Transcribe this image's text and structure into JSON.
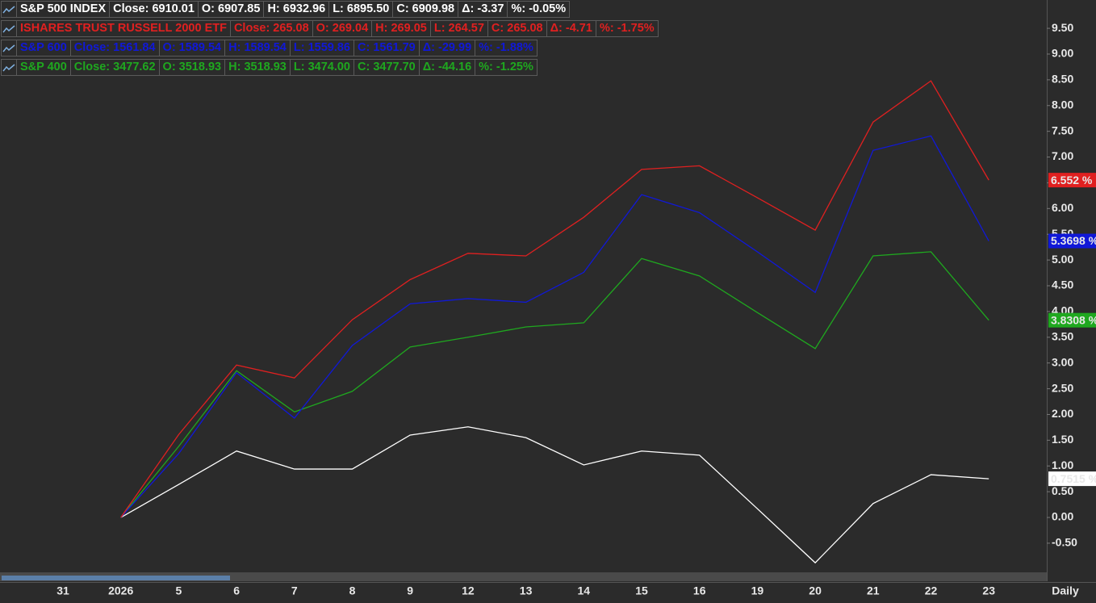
{
  "chart_data": {
    "type": "line",
    "categories": [
      "31",
      "2026",
      "5",
      "6",
      "7",
      "8",
      "9",
      "12",
      "13",
      "14",
      "15",
      "16",
      "19",
      "20",
      "21",
      "22",
      "23"
    ],
    "period": "Daily",
    "ylim": [
      -1.05,
      10.05
    ],
    "yticks": [
      {
        "value": -0.5,
        "label": "-0.50"
      },
      {
        "value": 0,
        "label": "0.00"
      },
      {
        "value": 0.5,
        "label": "0.50"
      },
      {
        "value": 1,
        "label": "1.00"
      },
      {
        "value": 1.5,
        "label": "1.50"
      },
      {
        "value": 2,
        "label": "2.00"
      },
      {
        "value": 2.5,
        "label": "2.50"
      },
      {
        "value": 3,
        "label": "3.00"
      },
      {
        "value": 3.5,
        "label": "3.50"
      },
      {
        "value": 4,
        "label": "4.00"
      },
      {
        "value": 4.5,
        "label": "4.50"
      },
      {
        "value": 5,
        "label": "5.00"
      },
      {
        "value": 5.5,
        "label": "5.50"
      },
      {
        "value": 6,
        "label": "6.00"
      },
      {
        "value": 6.5,
        "label": "6.50"
      },
      {
        "value": 7,
        "label": "7.00"
      },
      {
        "value": 7.5,
        "label": "7.50"
      },
      {
        "value": 8,
        "label": "8.00"
      },
      {
        "value": 8.5,
        "label": "8.50"
      },
      {
        "value": 9,
        "label": "9.00"
      },
      {
        "value": 9.5,
        "label": "9.50"
      }
    ],
    "grid": false,
    "series": [
      {
        "name": "S&P 500 INDEX",
        "color": "#ffffff",
        "label_text": "#000000",
        "stats": [
          "Close: 6910.01",
          "O: 6907.85",
          "H: 6932.96",
          "L: 6895.50",
          "C: 6909.98",
          "Δ: -3.37",
          "%: -0.05%"
        ],
        "values": [
          null,
          0,
          0.64,
          1.29,
          0.94,
          0.94,
          1.6,
          1.76,
          1.55,
          1.02,
          1.29,
          1.21,
          0.17,
          -0.88,
          0.27,
          0.83,
          0.7515
        ],
        "last_label": "0.7515 %"
      },
      {
        "name": "ISHARES TRUST RUSSELL 2000 ETF",
        "color": "#e02020",
        "label_text": "#ffffff",
        "stats": [
          "Close: 265.08",
          "O: 269.04",
          "H: 269.05",
          "L: 264.57",
          "C: 265.08",
          "Δ: -4.71",
          "%: -1.75%"
        ],
        "values": [
          null,
          0,
          1.61,
          2.96,
          2.71,
          3.84,
          4.62,
          5.13,
          5.08,
          5.83,
          6.76,
          6.83,
          6.21,
          5.58,
          7.68,
          8.48,
          6.552
        ],
        "last_label": "6.552 %"
      },
      {
        "name": "S&P 600",
        "color": "#1018d8",
        "label_text": "#c8c8ff",
        "stats": [
          "Close: 1561.84",
          "O: 1589.54",
          "H: 1589.54",
          "L: 1559.86",
          "C: 1561.79",
          "Δ: -29.99",
          "%: -1.88%"
        ],
        "values": [
          null,
          0,
          1.24,
          2.81,
          1.93,
          3.34,
          4.15,
          4.25,
          4.18,
          4.76,
          6.27,
          5.92,
          5.16,
          4.37,
          7.13,
          7.41,
          5.3698
        ],
        "last_label": "5.3698 %"
      },
      {
        "name": "S&P 400",
        "color": "#1fa81f",
        "label_text": "#000000",
        "stats": [
          "Close: 3477.62",
          "O: 3518.93",
          "H: 3518.93",
          "L: 3474.00",
          "C: 3477.70",
          "Δ: -44.16",
          "%: -1.25%"
        ],
        "values": [
          null,
          0,
          1.38,
          2.85,
          2.05,
          2.45,
          3.31,
          3.5,
          3.7,
          3.78,
          5.03,
          4.69,
          3.98,
          3.28,
          5.08,
          5.16,
          3.8308
        ],
        "last_label": "3.8308 %"
      }
    ]
  }
}
